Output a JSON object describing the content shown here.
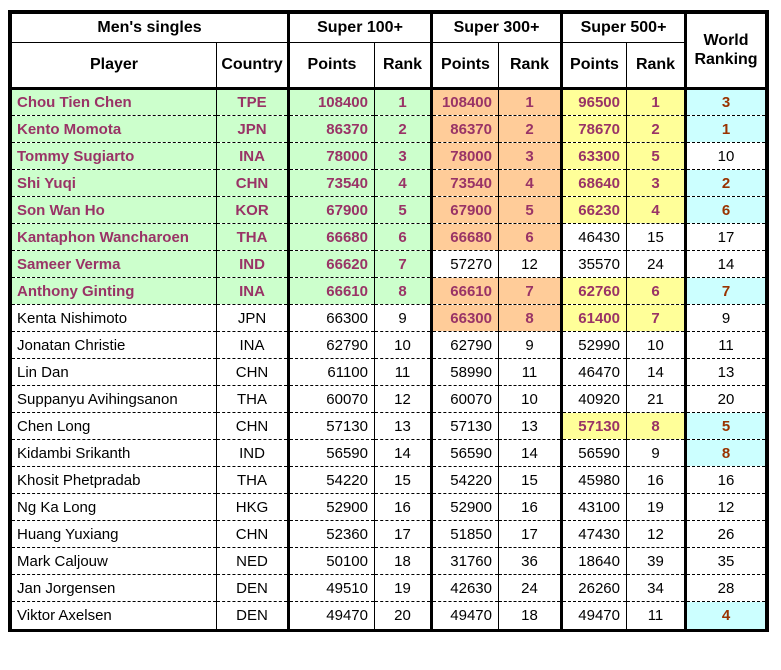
{
  "colors": {
    "top8_super100_bg": "#CCFFCC",
    "top8_super300_bg": "#FFCC99",
    "top8_super500_bg": "#FFFF99",
    "top8_world_bg": "#CCFFFF",
    "highlight_text": "#993366",
    "world_highlight_text": "#993300",
    "border": "#000000"
  },
  "chart_data": {
    "type": "table",
    "title": "Men's singles",
    "column_groups": [
      "Super 100+",
      "Super 300+",
      "Super 500+"
    ],
    "columns": {
      "player": "Player",
      "country": "Country",
      "points": "Points",
      "rank": "Rank",
      "world_ranking": "World Ranking"
    },
    "rows": [
      {
        "player": "Chou Tien Chen",
        "country": "TPE",
        "s100": {
          "points": "108400",
          "rank": "1",
          "top8": true
        },
        "s300": {
          "points": "108400",
          "rank": "1",
          "top8": true
        },
        "s500": {
          "points": "96500",
          "rank": "1",
          "top8": true
        },
        "world": {
          "rank": "3",
          "top8": true
        }
      },
      {
        "player": "Kento Momota",
        "country": "JPN",
        "s100": {
          "points": "86370",
          "rank": "2",
          "top8": true
        },
        "s300": {
          "points": "86370",
          "rank": "2",
          "top8": true
        },
        "s500": {
          "points": "78670",
          "rank": "2",
          "top8": true
        },
        "world": {
          "rank": "1",
          "top8": true
        }
      },
      {
        "player": "Tommy Sugiarto",
        "country": "INA",
        "s100": {
          "points": "78000",
          "rank": "3",
          "top8": true
        },
        "s300": {
          "points": "78000",
          "rank": "3",
          "top8": true
        },
        "s500": {
          "points": "63300",
          "rank": "5",
          "top8": true
        },
        "world": {
          "rank": "10",
          "top8": false
        }
      },
      {
        "player": "Shi Yuqi",
        "country": "CHN",
        "s100": {
          "points": "73540",
          "rank": "4",
          "top8": true
        },
        "s300": {
          "points": "73540",
          "rank": "4",
          "top8": true
        },
        "s500": {
          "points": "68640",
          "rank": "3",
          "top8": true
        },
        "world": {
          "rank": "2",
          "top8": true
        }
      },
      {
        "player": "Son Wan Ho",
        "country": "KOR",
        "s100": {
          "points": "67900",
          "rank": "5",
          "top8": true
        },
        "s300": {
          "points": "67900",
          "rank": "5",
          "top8": true
        },
        "s500": {
          "points": "66230",
          "rank": "4",
          "top8": true
        },
        "world": {
          "rank": "6",
          "top8": true
        }
      },
      {
        "player": "Kantaphon Wancharoen",
        "country": "THA",
        "s100": {
          "points": "66680",
          "rank": "6",
          "top8": true
        },
        "s300": {
          "points": "66680",
          "rank": "6",
          "top8": true
        },
        "s500": {
          "points": "46430",
          "rank": "15",
          "top8": false
        },
        "world": {
          "rank": "17",
          "top8": false
        }
      },
      {
        "player": "Sameer Verma",
        "country": "IND",
        "s100": {
          "points": "66620",
          "rank": "7",
          "top8": true
        },
        "s300": {
          "points": "57270",
          "rank": "12",
          "top8": false
        },
        "s500": {
          "points": "35570",
          "rank": "24",
          "top8": false
        },
        "world": {
          "rank": "14",
          "top8": false
        }
      },
      {
        "player": "Anthony Ginting",
        "country": "INA",
        "s100": {
          "points": "66610",
          "rank": "8",
          "top8": true
        },
        "s300": {
          "points": "66610",
          "rank": "7",
          "top8": true
        },
        "s500": {
          "points": "62760",
          "rank": "6",
          "top8": true
        },
        "world": {
          "rank": "7",
          "top8": true
        }
      },
      {
        "player": "Kenta Nishimoto",
        "country": "JPN",
        "s100": {
          "points": "66300",
          "rank": "9",
          "top8": false
        },
        "s300": {
          "points": "66300",
          "rank": "8",
          "top8": true
        },
        "s500": {
          "points": "61400",
          "rank": "7",
          "top8": true
        },
        "world": {
          "rank": "9",
          "top8": false
        }
      },
      {
        "player": "Jonatan Christie",
        "country": "INA",
        "s100": {
          "points": "62790",
          "rank": "10",
          "top8": false
        },
        "s300": {
          "points": "62790",
          "rank": "9",
          "top8": false
        },
        "s500": {
          "points": "52990",
          "rank": "10",
          "top8": false
        },
        "world": {
          "rank": "11",
          "top8": false
        }
      },
      {
        "player": "Lin Dan",
        "country": "CHN",
        "s100": {
          "points": "61100",
          "rank": "11",
          "top8": false
        },
        "s300": {
          "points": "58990",
          "rank": "11",
          "top8": false
        },
        "s500": {
          "points": "46470",
          "rank": "14",
          "top8": false
        },
        "world": {
          "rank": "13",
          "top8": false
        }
      },
      {
        "player": "Suppanyu Avihingsanon",
        "country": "THA",
        "s100": {
          "points": "60070",
          "rank": "12",
          "top8": false
        },
        "s300": {
          "points": "60070",
          "rank": "10",
          "top8": false
        },
        "s500": {
          "points": "40920",
          "rank": "21",
          "top8": false
        },
        "world": {
          "rank": "20",
          "top8": false
        }
      },
      {
        "player": "Chen Long",
        "country": "CHN",
        "s100": {
          "points": "57130",
          "rank": "13",
          "top8": false
        },
        "s300": {
          "points": "57130",
          "rank": "13",
          "top8": false
        },
        "s500": {
          "points": "57130",
          "rank": "8",
          "top8": true
        },
        "world": {
          "rank": "5",
          "top8": true
        }
      },
      {
        "player": "Kidambi Srikanth",
        "country": "IND",
        "s100": {
          "points": "56590",
          "rank": "14",
          "top8": false
        },
        "s300": {
          "points": "56590",
          "rank": "14",
          "top8": false
        },
        "s500": {
          "points": "56590",
          "rank": "9",
          "top8": false
        },
        "world": {
          "rank": "8",
          "top8": true
        }
      },
      {
        "player": "Khosit Phetpradab",
        "country": "THA",
        "s100": {
          "points": "54220",
          "rank": "15",
          "top8": false
        },
        "s300": {
          "points": "54220",
          "rank": "15",
          "top8": false
        },
        "s500": {
          "points": "45980",
          "rank": "16",
          "top8": false
        },
        "world": {
          "rank": "16",
          "top8": false
        }
      },
      {
        "player": "Ng Ka Long",
        "country": "HKG",
        "s100": {
          "points": "52900",
          "rank": "16",
          "top8": false
        },
        "s300": {
          "points": "52900",
          "rank": "16",
          "top8": false
        },
        "s500": {
          "points": "43100",
          "rank": "19",
          "top8": false
        },
        "world": {
          "rank": "12",
          "top8": false
        }
      },
      {
        "player": "Huang Yuxiang",
        "country": "CHN",
        "s100": {
          "points": "52360",
          "rank": "17",
          "top8": false
        },
        "s300": {
          "points": "51850",
          "rank": "17",
          "top8": false
        },
        "s500": {
          "points": "47430",
          "rank": "12",
          "top8": false
        },
        "world": {
          "rank": "26",
          "top8": false
        }
      },
      {
        "player": "Mark Caljouw",
        "country": "NED",
        "s100": {
          "points": "50100",
          "rank": "18",
          "top8": false
        },
        "s300": {
          "points": "31760",
          "rank": "36",
          "top8": false
        },
        "s500": {
          "points": "18640",
          "rank": "39",
          "top8": false
        },
        "world": {
          "rank": "35",
          "top8": false
        }
      },
      {
        "player": "Jan Jorgensen",
        "country": "DEN",
        "s100": {
          "points": "49510",
          "rank": "19",
          "top8": false
        },
        "s300": {
          "points": "42630",
          "rank": "24",
          "top8": false
        },
        "s500": {
          "points": "26260",
          "rank": "34",
          "top8": false
        },
        "world": {
          "rank": "28",
          "top8": false
        }
      },
      {
        "player": "Viktor Axelsen",
        "country": "DEN",
        "s100": {
          "points": "49470",
          "rank": "20",
          "top8": false
        },
        "s300": {
          "points": "49470",
          "rank": "18",
          "top8": false
        },
        "s500": {
          "points": "49470",
          "rank": "11",
          "top8": false
        },
        "world": {
          "rank": "4",
          "top8": true
        }
      }
    ]
  }
}
